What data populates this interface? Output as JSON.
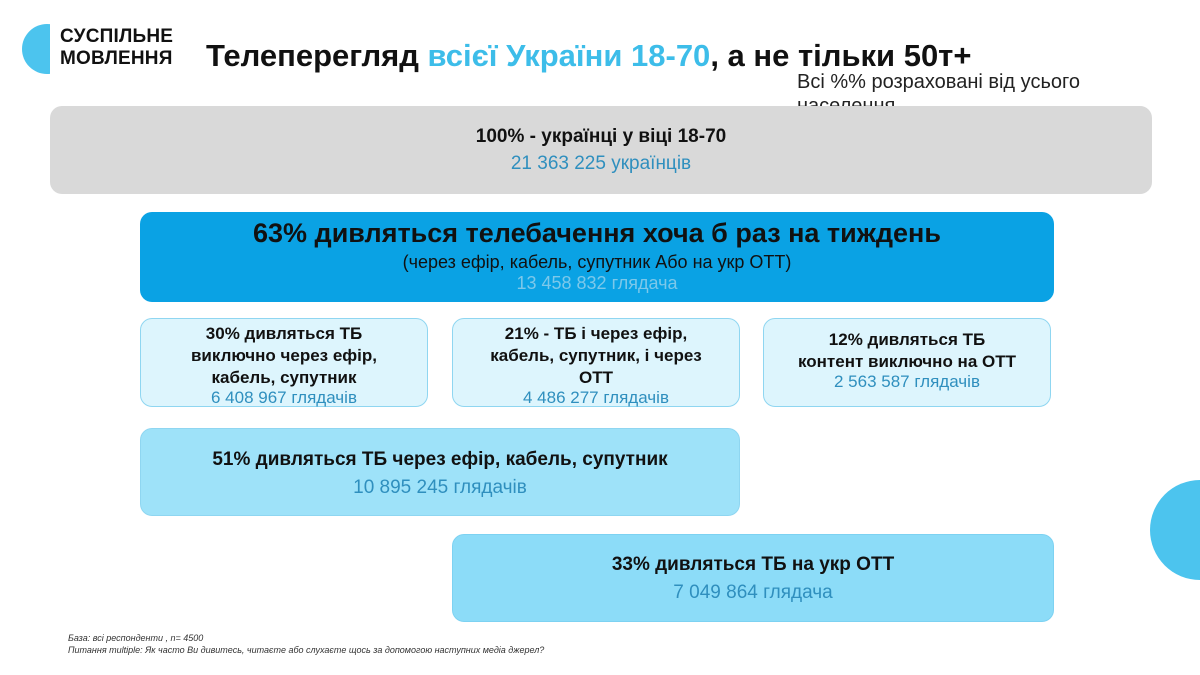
{
  "logo": {
    "line1": "СУСПІЛЬНЕ",
    "line2": "МОВЛЕННЯ"
  },
  "title": {
    "prefix": "Телеперегляд ",
    "accent": "всієї України 18-70",
    "suffix": ", а не тільки 50т+"
  },
  "note": "Всі %% розраховані від усього населення",
  "boxes": {
    "total": {
      "label": "100%  - українці у віці 18-70",
      "count": "21 363 225 українців"
    },
    "tv": {
      "label": "63% дивляться телебачення хоча б раз на тиждень",
      "sub": "(через ефір, кабель, супутник Або на укр ОТТ)",
      "count": "13 458 832 глядача"
    },
    "broadcast_only": {
      "line1": "30% дивляться ТБ",
      "line2": "виключно через ефір,",
      "line3": "кабель, супутник",
      "count": "6 408 967  глядачів"
    },
    "both": {
      "line1": "21% - ТБ і через ефір,",
      "line2": "кабель, супутник, і через",
      "line3": "ОТТ",
      "count": "4 486 277 глядачів"
    },
    "ott_only": {
      "line1": "12% дивляться ТБ",
      "line2": "контент виключно на ОТТ",
      "count": "2 563 587 глядачів"
    },
    "broadcast_all": {
      "label": "51% дивляться ТБ через ефір, кабель, супутник",
      "count": "10 895 245 глядачів"
    },
    "ott_all": {
      "label": "33% дивляться ТБ на укр ОТТ",
      "count": "7 049 864 глядача"
    }
  },
  "footnote": {
    "line1": "База: всі респонденти , n= 4500",
    "line2": "Питання multiple: Як часто Ви дивитесь, читаєте або слухаєте щось за допомогою наступних медіа джерел?"
  },
  "colors": {
    "accent": "#3dbde9",
    "tv_box": "#0aa2e4",
    "total_box": "#d9d9d9",
    "count_text": "#2f8fbe"
  }
}
